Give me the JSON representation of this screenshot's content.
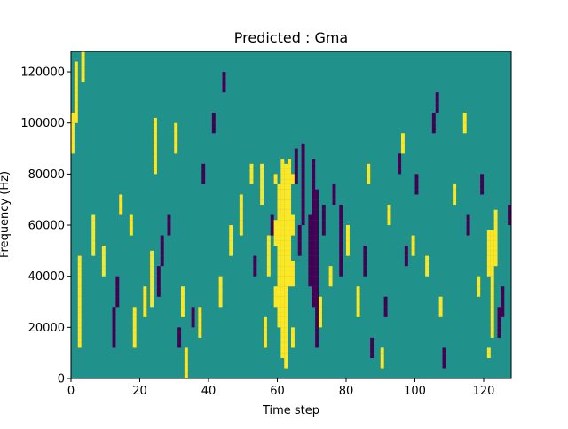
{
  "chart_data": {
    "type": "heatmap",
    "title": "Predicted : Gma",
    "xlabel": "Time step",
    "ylabel": "Frequency (Hz)",
    "xlim": [
      0,
      128
    ],
    "ylim": [
      0,
      128000
    ],
    "xticks": [
      0,
      20,
      40,
      60,
      80,
      100,
      120
    ],
    "yticks": [
      0,
      20000,
      40000,
      60000,
      80000,
      100000,
      120000
    ],
    "xtick_labels": [
      "0",
      "20",
      "40",
      "60",
      "80",
      "100",
      "120"
    ],
    "ytick_labels": [
      "0",
      "20000",
      "40000",
      "60000",
      "80000",
      "100000",
      "120000"
    ],
    "grid": false,
    "legend": "none",
    "n_time_steps": 128,
    "n_freq_bins": 64,
    "freq_bin_width_hz": 2000,
    "colors": {
      "low": "#440154",
      "mid": "#21918c",
      "high": "#fde725"
    },
    "background_value": 0,
    "high_cells": [
      {
        "t": 61,
        "f": [
          4,
          5,
          6,
          7,
          8,
          9,
          10,
          11,
          12,
          13,
          14,
          15,
          16,
          17,
          18,
          19,
          20,
          21,
          22,
          23,
          24,
          25,
          26,
          27,
          28,
          29,
          30,
          31,
          32,
          33,
          34,
          35,
          36,
          37,
          38,
          39,
          40,
          41,
          42
        ]
      },
      {
        "t": 62,
        "f": [
          2,
          3,
          4,
          5,
          6,
          7,
          8,
          9,
          10,
          11,
          12,
          13,
          14,
          15,
          16,
          17,
          18,
          19,
          20,
          21,
          22,
          23,
          24,
          25,
          26,
          27,
          28,
          29,
          30,
          31,
          32,
          33,
          34,
          35,
          36,
          37,
          38,
          39,
          40,
          41
        ]
      },
      {
        "t": 60,
        "f": [
          10,
          11,
          12,
          13,
          14,
          15,
          16,
          17,
          18,
          19,
          20,
          21,
          22,
          23,
          24,
          25,
          26,
          27,
          28,
          29,
          30,
          31,
          32,
          33,
          34,
          35,
          36,
          37
        ]
      },
      {
        "t": 63,
        "f": [
          18,
          19,
          20,
          21,
          22,
          23,
          24,
          25,
          26,
          27,
          28,
          29,
          30,
          31,
          32,
          33,
          34,
          35,
          36,
          37,
          38,
          39,
          40,
          41,
          42
        ]
      },
      {
        "t": 64,
        "f": [
          6,
          7,
          8,
          9,
          18,
          19,
          20,
          21,
          22,
          28,
          29,
          30,
          31,
          38,
          39
        ]
      },
      {
        "t": 59,
        "f": [
          14,
          15,
          16,
          17,
          26,
          27,
          28,
          29,
          30,
          38,
          39
        ]
      },
      {
        "t": 57,
        "f": [
          20,
          21,
          22,
          23,
          24,
          25,
          26,
          27
        ]
      },
      {
        "t": 55,
        "f": [
          34,
          35,
          36,
          37,
          38,
          39,
          40,
          41
        ]
      },
      {
        "t": 122,
        "f": [
          8,
          9,
          10,
          11,
          12,
          13,
          14,
          15,
          16,
          17,
          18,
          19,
          20,
          21,
          22,
          23,
          24,
          25,
          26,
          27,
          28
        ]
      },
      {
        "t": 121,
        "f": [
          4,
          5,
          20,
          21,
          22,
          23,
          24,
          25,
          26,
          27,
          28
        ]
      },
      {
        "t": 123,
        "f": [
          22,
          23,
          24,
          25,
          26,
          27,
          28,
          29,
          30,
          31,
          32
        ]
      },
      {
        "t": 2,
        "f": [
          6,
          7,
          8,
          9,
          10,
          11,
          12,
          13,
          14,
          15,
          16,
          17,
          18,
          19,
          20,
          21,
          22,
          23
        ]
      },
      {
        "t": 3,
        "f": [
          58,
          59,
          60,
          61,
          62,
          63
        ]
      },
      {
        "t": 1,
        "f": [
          50,
          51,
          52,
          53,
          54,
          55,
          56,
          57,
          58,
          59,
          60,
          61
        ]
      },
      {
        "t": 0,
        "f": [
          44,
          45,
          46,
          47,
          48,
          49,
          50,
          51
        ]
      },
      {
        "t": 6,
        "f": [
          24,
          25,
          26,
          27,
          28,
          29,
          30,
          31
        ]
      },
      {
        "t": 9,
        "f": [
          20,
          21,
          22,
          23,
          24,
          25
        ]
      },
      {
        "t": 14,
        "f": [
          32,
          33,
          34,
          35
        ]
      },
      {
        "t": 17,
        "f": [
          28,
          29,
          30,
          31
        ]
      },
      {
        "t": 18,
        "f": [
          6,
          7,
          8,
          9,
          10,
          11,
          12,
          13
        ]
      },
      {
        "t": 21,
        "f": [
          12,
          13,
          14,
          15,
          16,
          17
        ]
      },
      {
        "t": 23,
        "f": [
          14,
          15,
          16,
          17,
          18,
          19,
          20,
          21,
          22,
          23,
          24
        ]
      },
      {
        "t": 24,
        "f": [
          40,
          41,
          42,
          43,
          44,
          45,
          46,
          47,
          48,
          49,
          50
        ]
      },
      {
        "t": 30,
        "f": [
          44,
          45,
          46,
          47,
          48,
          49
        ]
      },
      {
        "t": 32,
        "f": [
          12,
          13,
          14,
          15,
          16,
          17
        ]
      },
      {
        "t": 33,
        "f": [
          0,
          1,
          2,
          3,
          4,
          5
        ]
      },
      {
        "t": 37,
        "f": [
          8,
          9,
          10,
          11,
          12,
          13
        ]
      },
      {
        "t": 43,
        "f": [
          14,
          15,
          16,
          17,
          18,
          19
        ]
      },
      {
        "t": 46,
        "f": [
          24,
          25,
          26,
          27,
          28,
          29
        ]
      },
      {
        "t": 49,
        "f": [
          28,
          29,
          30,
          31,
          32,
          33,
          34,
          35
        ]
      },
      {
        "t": 52,
        "f": [
          38,
          39,
          40,
          41
        ]
      },
      {
        "t": 56,
        "f": [
          6,
          7,
          8,
          9,
          10,
          11
        ]
      },
      {
        "t": 72,
        "f": [
          10,
          11,
          12,
          13,
          14,
          15
        ]
      },
      {
        "t": 75,
        "f": [
          18,
          19,
          20,
          21
        ]
      },
      {
        "t": 80,
        "f": [
          24,
          25,
          26,
          27,
          28,
          29
        ]
      },
      {
        "t": 83,
        "f": [
          12,
          13,
          14,
          15,
          16,
          17
        ]
      },
      {
        "t": 86,
        "f": [
          38,
          39,
          40,
          41
        ]
      },
      {
        "t": 90,
        "f": [
          2,
          3,
          4,
          5
        ]
      },
      {
        "t": 92,
        "f": [
          30,
          31,
          32,
          33
        ]
      },
      {
        "t": 96,
        "f": [
          44,
          45,
          46,
          47
        ]
      },
      {
        "t": 99,
        "f": [
          24,
          25,
          26,
          27
        ]
      },
      {
        "t": 103,
        "f": [
          20,
          21,
          22,
          23
        ]
      },
      {
        "t": 107,
        "f": [
          12,
          13,
          14,
          15
        ]
      },
      {
        "t": 111,
        "f": [
          34,
          35,
          36,
          37
        ]
      },
      {
        "t": 114,
        "f": [
          48,
          49,
          50,
          51
        ]
      },
      {
        "t": 118,
        "f": [
          16,
          17,
          18,
          19
        ]
      }
    ],
    "low_cells": [
      {
        "t": 70,
        "f": [
          14,
          15,
          16,
          17,
          18,
          19,
          20,
          21,
          22,
          23,
          24,
          25,
          26,
          27,
          28,
          29,
          30,
          31,
          32,
          33,
          34,
          35,
          36,
          37,
          38,
          39,
          40,
          41,
          42
        ]
      },
      {
        "t": 71,
        "f": [
          6,
          7,
          8,
          9,
          10,
          11,
          12,
          13,
          14,
          15,
          16,
          17,
          18,
          19,
          20,
          21,
          22,
          23,
          24,
          25,
          26,
          27,
          28,
          29,
          30,
          31,
          32,
          33,
          34,
          35,
          36
        ]
      },
      {
        "t": 69,
        "f": [
          18,
          19,
          20,
          21,
          22,
          23,
          24,
          25,
          26,
          27,
          28,
          29,
          30,
          31
        ]
      },
      {
        "t": 67,
        "f": [
          30,
          31,
          32,
          33,
          34,
          35,
          36,
          37,
          38,
          39,
          40,
          41,
          42,
          43,
          44,
          45
        ]
      },
      {
        "t": 78,
        "f": [
          20,
          21,
          22,
          23,
          24,
          25,
          26,
          27,
          28,
          29,
          30,
          31,
          32,
          33
        ]
      },
      {
        "t": 65,
        "f": [
          38,
          39,
          40,
          41,
          42,
          43,
          44
        ]
      },
      {
        "t": 66,
        "f": [
          24,
          25,
          26,
          27,
          28,
          29
        ]
      },
      {
        "t": 73,
        "f": [
          28,
          29,
          30,
          31,
          32,
          33
        ]
      },
      {
        "t": 76,
        "f": [
          34,
          35,
          36,
          37
        ]
      },
      {
        "t": 12,
        "f": [
          6,
          7,
          8,
          9,
          10,
          11,
          12,
          13
        ]
      },
      {
        "t": 13,
        "f": [
          14,
          15,
          16,
          17,
          18,
          19
        ]
      },
      {
        "t": 25,
        "f": [
          16,
          17,
          18,
          19,
          20,
          21
        ]
      },
      {
        "t": 26,
        "f": [
          22,
          23,
          24,
          25,
          26,
          27
        ]
      },
      {
        "t": 28,
        "f": [
          28,
          29,
          30,
          31
        ]
      },
      {
        "t": 31,
        "f": [
          6,
          7,
          8,
          9
        ]
      },
      {
        "t": 35,
        "f": [
          10,
          11,
          12,
          13
        ]
      },
      {
        "t": 38,
        "f": [
          38,
          39,
          40,
          41
        ]
      },
      {
        "t": 41,
        "f": [
          48,
          49,
          50,
          51
        ]
      },
      {
        "t": 44,
        "f": [
          56,
          57,
          58,
          59
        ]
      },
      {
        "t": 53,
        "f": [
          20,
          21,
          22,
          23
        ]
      },
      {
        "t": 58,
        "f": [
          28,
          29,
          30,
          31
        ]
      },
      {
        "t": 85,
        "f": [
          20,
          21,
          22,
          23,
          24,
          25
        ]
      },
      {
        "t": 87,
        "f": [
          4,
          5,
          6,
          7
        ]
      },
      {
        "t": 91,
        "f": [
          12,
          13,
          14,
          15
        ]
      },
      {
        "t": 95,
        "f": [
          40,
          41,
          42,
          43
        ]
      },
      {
        "t": 97,
        "f": [
          22,
          23,
          24,
          25
        ]
      },
      {
        "t": 100,
        "f": [
          36,
          37,
          38,
          39
        ]
      },
      {
        "t": 105,
        "f": [
          48,
          49,
          50,
          51
        ]
      },
      {
        "t": 106,
        "f": [
          52,
          53,
          54,
          55
        ]
      },
      {
        "t": 108,
        "f": [
          2,
          3,
          4,
          5
        ]
      },
      {
        "t": 115,
        "f": [
          28,
          29,
          30,
          31
        ]
      },
      {
        "t": 119,
        "f": [
          36,
          37,
          38,
          39
        ]
      },
      {
        "t": 124,
        "f": [
          8,
          9,
          10,
          11,
          12,
          13
        ]
      },
      {
        "t": 125,
        "f": [
          12,
          13,
          14,
          15,
          16,
          17
        ]
      },
      {
        "t": 127,
        "f": [
          30,
          31,
          32,
          33
        ]
      }
    ]
  }
}
